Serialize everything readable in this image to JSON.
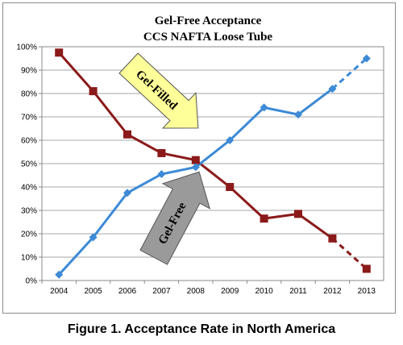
{
  "caption": "Figure 1. Acceptance Rate in North America",
  "chart_data": {
    "type": "line",
    "title": "Gel-Free Acceptance",
    "subtitle": "CCS NAFTA Loose Tube",
    "x": [
      "2004",
      "2005",
      "2006",
      "2007",
      "2008",
      "2009",
      "2010",
      "2011",
      "2012",
      "2013"
    ],
    "ylim": [
      0,
      100
    ],
    "yticks": [
      "0%",
      "10%",
      "20%",
      "30%",
      "40%",
      "50%",
      "60%",
      "70%",
      "80%",
      "90%",
      "100%"
    ],
    "grid": true,
    "legend": "none",
    "series": [
      {
        "name": "Gel-Filled",
        "color": "#8b1a1a",
        "marker": "square",
        "values": [
          97.5,
          81,
          62.5,
          54.5,
          51.5,
          40,
          26.5,
          28.5,
          18,
          5
        ],
        "projected_from": "2012"
      },
      {
        "name": "Gel-Free",
        "color": "#3d8ad6",
        "marker": "diamond",
        "values": [
          2.5,
          18.5,
          37.5,
          45.5,
          48.5,
          60,
          74,
          71,
          82,
          95
        ],
        "projected_from": "2012"
      }
    ],
    "annotations": [
      {
        "text": "Gel-Filled",
        "shape": "arrow",
        "fill": "#ffff99"
      },
      {
        "text": "Gel-Free",
        "shape": "arrow",
        "fill": "#9a9a9a"
      }
    ]
  }
}
